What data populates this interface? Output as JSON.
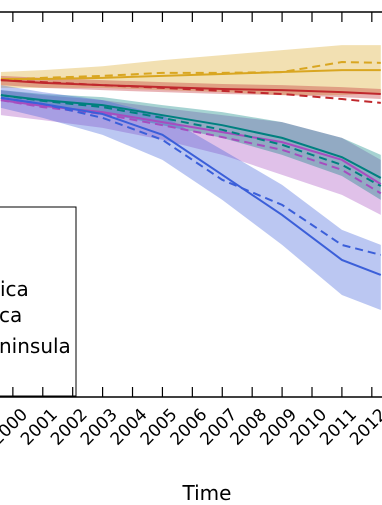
{
  "chart_data": {
    "type": "line",
    "x_label": "Time",
    "x": [
      1999.6,
      2001,
      2003,
      2005,
      2007,
      2009,
      2011,
      2012.3
    ],
    "xlim": [
      1999.57,
      2012.34
    ],
    "xticks": [
      2000,
      2001,
      2002,
      2003,
      2004,
      2005,
      2006,
      2007,
      2008,
      2009,
      2010,
      2011,
      2012
    ],
    "ylim": [
      0,
      100
    ],
    "legend": {
      "entries": [
        "ica",
        "ca",
        "ninsula"
      ]
    },
    "series": [
      {
        "color": "#d9a621",
        "values": [
          82.6,
          82.6,
          82.9,
          83.4,
          83.9,
          84.4,
          84.9,
          84.9
        ],
        "dashed": [
          82.3,
          82.9,
          83.4,
          84.2,
          84.2,
          84.4,
          87.0,
          86.8
        ],
        "lower": [
          80.3,
          80.3,
          80.3,
          79.7,
          79.2,
          78.4,
          78.4,
          78.9
        ],
        "upper": [
          84.4,
          84.9,
          85.9,
          87.5,
          88.8,
          90.1,
          91.4,
          91.4
        ]
      },
      {
        "color": "#c0282d",
        "values": [
          82.3,
          81.6,
          81.0,
          80.5,
          80.0,
          79.7,
          79.2,
          78.7
        ],
        "dashed": [
          82.3,
          81.8,
          81.0,
          80.3,
          79.5,
          78.7,
          77.4,
          76.4
        ],
        "lower": [
          81.0,
          80.3,
          79.7,
          79.2,
          78.7,
          78.4,
          77.9,
          77.4
        ],
        "upper": [
          83.4,
          82.9,
          82.3,
          81.8,
          81.3,
          81.0,
          80.5,
          80.0
        ]
      },
      {
        "color": "#a64dbf",
        "values": [
          77.1,
          75.6,
          74.0,
          71.4,
          68.8,
          66.2,
          61.6,
          55.3
        ],
        "dashed": [
          77.1,
          75.3,
          73.5,
          70.6,
          67.5,
          64.2,
          59.0,
          52.9
        ],
        "lower": [
          73.2,
          71.9,
          69.9,
          66.8,
          62.9,
          57.7,
          52.5,
          47.3
        ],
        "upper": [
          79.7,
          78.4,
          77.1,
          75.1,
          73.2,
          71.4,
          67.3,
          61.6
        ]
      },
      {
        "color": "#00807f",
        "values": [
          78.4,
          77.1,
          75.8,
          73.2,
          70.6,
          67.3,
          62.3,
          56.9
        ],
        "dashed": [
          78.4,
          76.9,
          75.3,
          72.5,
          69.4,
          65.5,
          60.3,
          54.8
        ],
        "lower": [
          77.1,
          75.6,
          73.8,
          70.6,
          67.3,
          62.9,
          57.4,
          51.2
        ],
        "upper": [
          79.7,
          78.7,
          77.9,
          75.8,
          74.0,
          71.4,
          67.3,
          62.9
        ]
      },
      {
        "color": "#3b5fd9",
        "values": [
          77.7,
          76.1,
          73.5,
          68.1,
          57.7,
          47.3,
          35.6,
          31.7
        ],
        "dashed": [
          77.7,
          76.1,
          72.5,
          66.8,
          56.4,
          49.9,
          39.5,
          36.9
        ],
        "lower": [
          75.1,
          72.5,
          68.1,
          61.6,
          51.2,
          39.5,
          26.5,
          22.6
        ],
        "upper": [
          81.0,
          79.2,
          77.1,
          73.2,
          64.2,
          55.1,
          43.4,
          39.5
        ]
      }
    ]
  }
}
